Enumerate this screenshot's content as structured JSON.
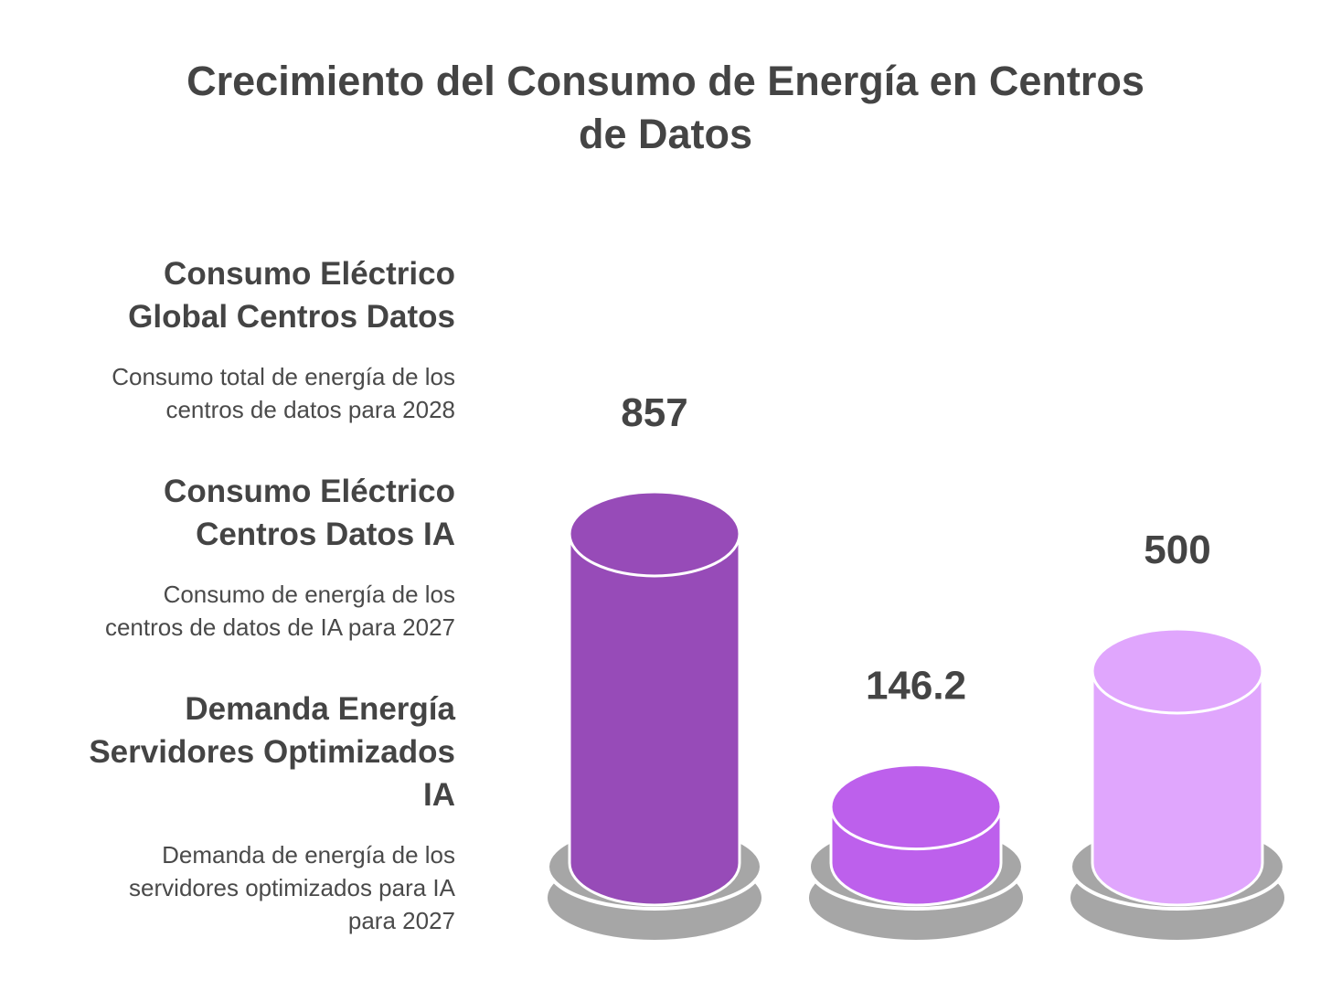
{
  "title_lines": [
    "Crecimiento del Consumo de Energía en Centros",
    "de Datos"
  ],
  "items": [
    {
      "heading_lines": [
        "Consumo Eléctrico",
        "Global Centros Datos"
      ],
      "desc_lines": [
        "Consumo total de energía de los",
        "centros de datos para 2028"
      ]
    },
    {
      "heading_lines": [
        "Consumo Eléctrico",
        "Centros Datos IA"
      ],
      "desc_lines": [
        "Consumo de energía de los",
        "centros de datos de IA para 2027"
      ]
    },
    {
      "heading_lines": [
        "Demanda Energía",
        "Servidores Optimizados",
        "IA"
      ],
      "desc_lines": [
        "Demanda de energía de los",
        "servidores optimizados para IA",
        "para 2027"
      ]
    }
  ],
  "chart_data": {
    "type": "bar",
    "title": "Crecimiento del Consumo de Energía en Centros de Datos",
    "categories": [
      "Consumo Eléctrico Global Centros Datos",
      "Consumo Eléctrico Centros Datos IA",
      "Demanda Energía Servidores Optimizados IA"
    ],
    "values": [
      857,
      146.2,
      500
    ],
    "value_labels": [
      "857",
      "146.2",
      "500"
    ],
    "colors": [
      "#974bb8",
      "#bd60ec",
      "#e0a6fd"
    ],
    "base_color": "#a6a6a6",
    "xlabel": "",
    "ylabel": ""
  }
}
